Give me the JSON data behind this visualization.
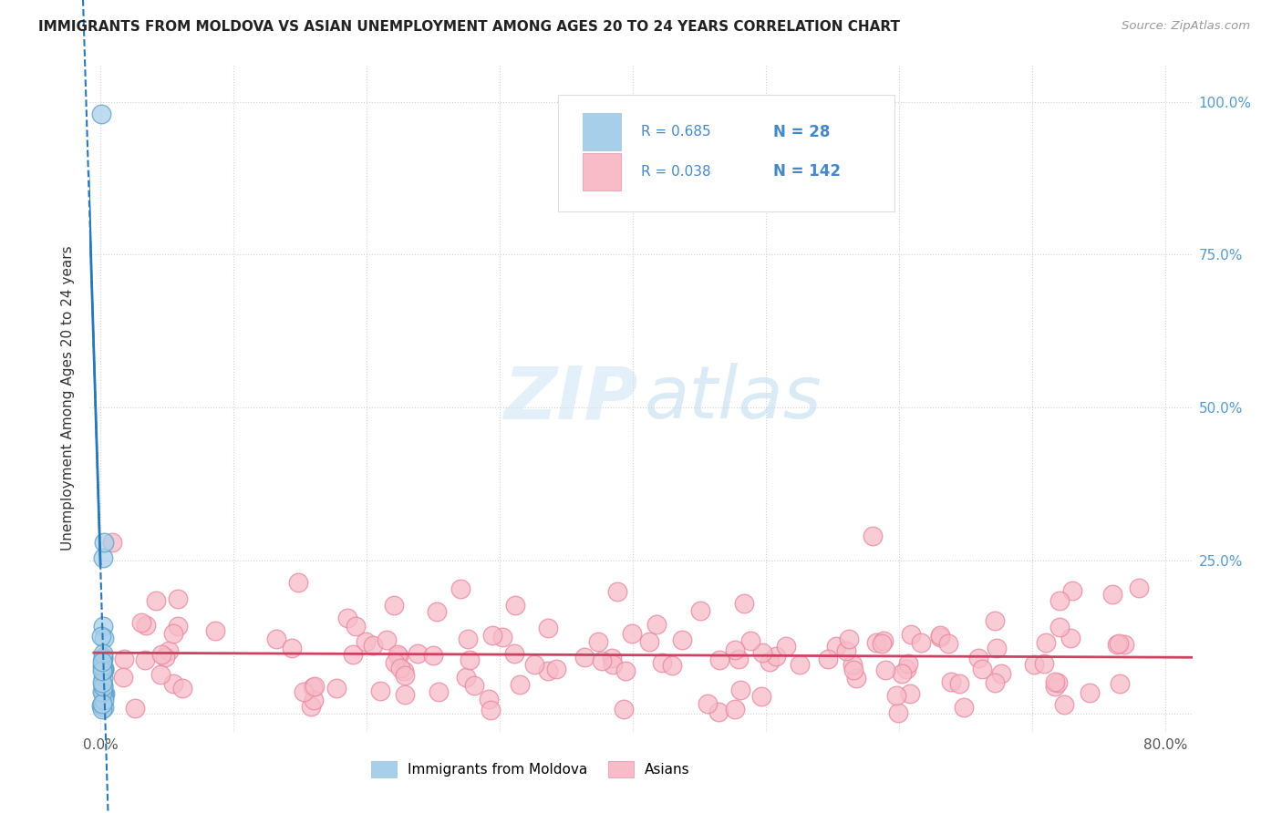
{
  "title": "IMMIGRANTS FROM MOLDOVA VS ASIAN UNEMPLOYMENT AMONG AGES 20 TO 24 YEARS CORRELATION CHART",
  "source": "Source: ZipAtlas.com",
  "ylabel": "Unemployment Among Ages 20 to 24 years",
  "xlim": [
    -0.008,
    0.82
  ],
  "ylim": [
    -0.03,
    1.06
  ],
  "xticks": [
    0.0,
    0.1,
    0.2,
    0.3,
    0.4,
    0.5,
    0.6,
    0.7,
    0.8
  ],
  "xticklabels": [
    "0.0%",
    "",
    "",
    "",
    "",
    "",
    "",
    "",
    "80.0%"
  ],
  "ytick_positions": [
    0.0,
    0.25,
    0.5,
    0.75,
    1.0
  ],
  "ytick_labels_right": [
    "",
    "25.0%",
    "50.0%",
    "75.0%",
    "100.0%"
  ],
  "legend1_R": "0.685",
  "legend1_N": "28",
  "legend2_R": "0.038",
  "legend2_N": "142",
  "moldova_color": "#a8cfea",
  "moldova_edge_color": "#5b9fc7",
  "asians_color": "#f7bcc8",
  "asians_edge_color": "#e888a0",
  "moldova_line_color": "#2878b8",
  "asians_line_color": "#d04060",
  "grid_color": "#cccccc",
  "background_color": "#ffffff",
  "title_color": "#222222",
  "source_color": "#999999",
  "axis_label_color": "#333333",
  "right_tick_color": "#5599cc",
  "legend_text_color": "#4488cc"
}
